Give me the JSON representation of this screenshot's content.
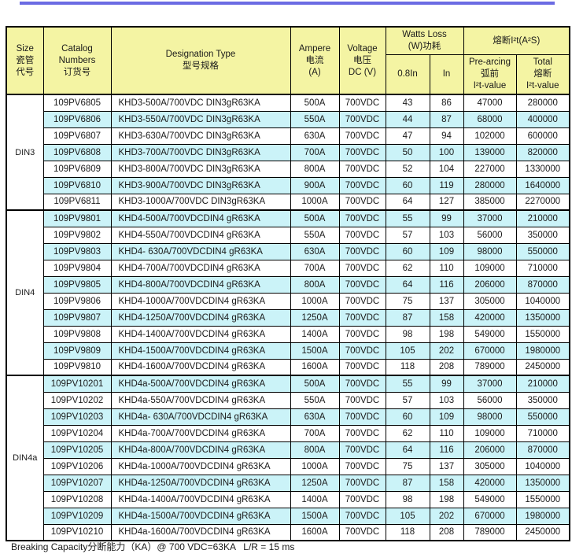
{
  "colors": {
    "header_bg": "#F4F4A3",
    "stripe_bg": "#CBF3F8",
    "accent_bar": "#6B6BE3",
    "border": "#000000"
  },
  "table": {
    "header": {
      "size": [
        "Size",
        "瓷管",
        "代号"
      ],
      "catalog": [
        "Catalog",
        "Numbers",
        "订货号"
      ],
      "designation": [
        "Designation Type",
        "型号规格"
      ],
      "ampere": [
        "Ampere",
        "电流",
        "(A)"
      ],
      "voltage": [
        "Voltage",
        "电压",
        "DC (V)"
      ],
      "watts_loss": [
        "Watts Loss",
        "(W)功耗"
      ],
      "watts_08in": "0.8In",
      "watts_in": "In",
      "i2t_group": "熔断I²t(A²S)",
      "prearcing": [
        "Pre-arcing",
        "弧前",
        "I²t-value"
      ],
      "total": [
        "Total",
        "熔断",
        "I²t-value"
      ]
    },
    "groups": [
      {
        "size": "DIN3",
        "rows": [
          [
            "109PV6805",
            "KHD3-500A/700VDC DIN3gR63KA",
            "500A",
            "700VDC",
            "43",
            "86",
            "47000",
            "280000"
          ],
          [
            "109PV6806",
            "KHD3-550A/700VDC DIN3gR63KA",
            "550A",
            "700VDC",
            "44",
            "87",
            "68000",
            "400000"
          ],
          [
            "109PV6807",
            "KHD3-630A/700VDC DIN3gR63KA",
            "630A",
            "700VDC",
            "47",
            "94",
            "102000",
            "600000"
          ],
          [
            "109PV6808",
            "KHD3-700A/700VDC DIN3gR63KA",
            "700A",
            "700VDC",
            "50",
            "100",
            "139000",
            "820000"
          ],
          [
            "109PV6809",
            "KHD3-800A/700VDC DIN3gR63KA",
            "800A",
            "700VDC",
            "52",
            "104",
            "227000",
            "1330000"
          ],
          [
            "109PV6810",
            "KHD3-900A/700VDC DIN3gR63KA",
            "900A",
            "700VDC",
            "60",
            "119",
            "280000",
            "1640000"
          ],
          [
            "109PV6811",
            "KHD3-1000A/700VDC DIN3gR63KA",
            "1000A",
            "700VDC",
            "64",
            "127",
            "385000",
            "2270000"
          ]
        ]
      },
      {
        "size": "DIN4",
        "rows": [
          [
            "109PV9801",
            "KHD4-500A/700VDCDIN4 gR63KA",
            "500A",
            "700VDC",
            "55",
            "99",
            "37000",
            "210000"
          ],
          [
            "109PV9802",
            "KHD4-550A/700VDCDIN4 gR63KA",
            "550A",
            "700VDC",
            "57",
            "103",
            "56000",
            "350000"
          ],
          [
            "109PV9803",
            "KHD4- 630A/700VDCDIN4 gR63KA",
            "630A",
            "700VDC",
            "60",
            "109",
            "98000",
            "550000"
          ],
          [
            "109PV9804",
            "KHD4-700A/700VDCDIN4 gR63KA",
            "700A",
            "700VDC",
            "62",
            "110",
            "109000",
            "710000"
          ],
          [
            "109PV9805",
            "KHD4-800A/700VDCDIN4 gR63KA",
            "800A",
            "700VDC",
            "64",
            "116",
            "206000",
            "870000"
          ],
          [
            "109PV9806",
            "KHD4-1000A/700VDCDIN4 gR63KA",
            "1000A",
            "700VDC",
            "75",
            "137",
            "305000",
            "1040000"
          ],
          [
            "109PV9807",
            "KHD4-1250A/700VDCDIN4 gR63KA",
            "1250A",
            "700VDC",
            "87",
            "158",
            "420000",
            "1350000"
          ],
          [
            "109PV9808",
            "KHD4-1400A/700VDCDIN4 gR63KA",
            "1400A",
            "700VDC",
            "98",
            "198",
            "549000",
            "1550000"
          ],
          [
            "109PV9809",
            "KHD4-1500A/700VDCDIN4 gR63KA",
            "1500A",
            "700VDC",
            "105",
            "202",
            "670000",
            "1980000"
          ],
          [
            "109PV9810",
            "KHD4-1600A/700VDCDIN4 gR63KA",
            "1600A",
            "700VDC",
            "118",
            "208",
            "789000",
            "2450000"
          ]
        ]
      },
      {
        "size": "DIN4a",
        "rows": [
          [
            "109PV10201",
            "KHD4a-500A/700VDCDIN4 gR63KA",
            "500A",
            "700VDC",
            "55",
            "99",
            "37000",
            "210000"
          ],
          [
            "109PV10202",
            "KHD4a-550A/700VDCDIN4 gR63KA",
            "550A",
            "700VDC",
            "57",
            "103",
            "56000",
            "350000"
          ],
          [
            "109PV10203",
            "KHD4a- 630A/700VDCDIN4 gR63KA",
            "630A",
            "700VDC",
            "60",
            "109",
            "98000",
            "550000"
          ],
          [
            "109PV10204",
            "KHD4a-700A/700VDCDIN4 gR63KA",
            "700A",
            "700VDC",
            "62",
            "110",
            "109000",
            "710000"
          ],
          [
            "109PV10205",
            "KHD4a-800A/700VDCDIN4 gR63KA",
            "800A",
            "700VDC",
            "64",
            "116",
            "206000",
            "870000"
          ],
          [
            "109PV10206",
            "KHD4a-1000A/700VDCDIN4 gR63KA",
            "1000A",
            "700VDC",
            "75",
            "137",
            "305000",
            "1040000"
          ],
          [
            "109PV10207",
            "KHD4a-1250A/700VDCDIN4 gR63KA",
            "1250A",
            "700VDC",
            "87",
            "158",
            "420000",
            "1350000"
          ],
          [
            "109PV10208",
            "KHD4a-1400A/700VDCDIN4 gR63KA",
            "1400A",
            "700VDC",
            "98",
            "198",
            "549000",
            "1550000"
          ],
          [
            "109PV10209",
            "KHD4a-1500A/700VDCDIN4 gR63KA",
            "1500A",
            "700VDC",
            "105",
            "202",
            "670000",
            "1980000"
          ],
          [
            "109PV10210",
            "KHD4a-1600A/700VDCDIN4 gR63KA",
            "1600A",
            "700VDC",
            "118",
            "208",
            "789000",
            "2450000"
          ]
        ]
      }
    ]
  },
  "footer": {
    "text": "Breaking Capacity分断能力（KA）@ 700 VDC=63KA   L/R = 15 ms"
  }
}
